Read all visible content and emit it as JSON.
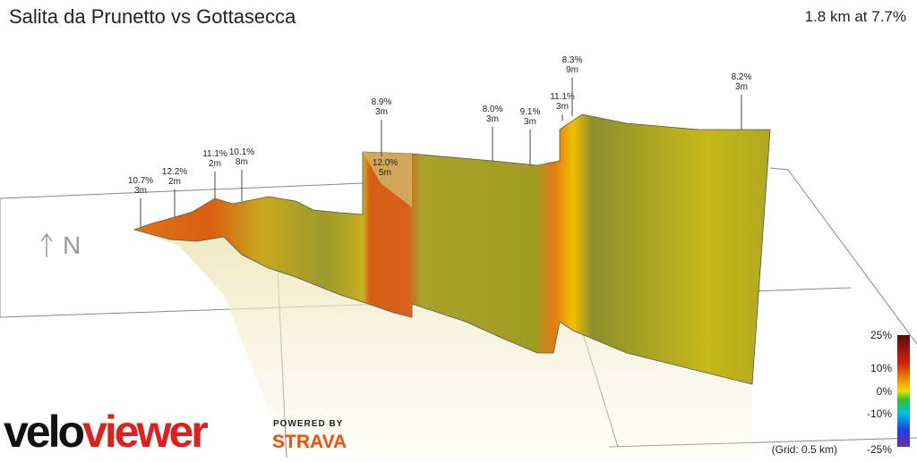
{
  "header": {
    "title": "Salita da Prunetto vs Gottasecca",
    "summary": "1.8 km at 7.7%"
  },
  "compass": "N",
  "annotations": [
    {
      "grade": "10.7%",
      "length": "3m"
    },
    {
      "grade": "12.2%",
      "length": "2m"
    },
    {
      "grade": "11.1%",
      "length": "2m"
    },
    {
      "grade": "10.1%",
      "length": "8m"
    },
    {
      "grade": "8.9%",
      "length": "3m"
    },
    {
      "grade": "12.0%",
      "length": "5m"
    },
    {
      "grade": "8.0%",
      "length": "3m"
    },
    {
      "grade": "9.1%",
      "length": "3m"
    },
    {
      "grade": "11.1%",
      "length": "3m"
    },
    {
      "grade": "8.3%",
      "length": "9m"
    },
    {
      "grade": "8.2%",
      "length": "3m"
    }
  ],
  "legend": {
    "labels": [
      "25%",
      "10%",
      "0%",
      "-10%",
      "-25%"
    ],
    "grid_note": "(Grid: 0.5 km)"
  },
  "branding": {
    "logo_left": "velo",
    "logo_right": "viewer",
    "powered_by": "POWERED BY",
    "partner": "STRAVA"
  }
}
